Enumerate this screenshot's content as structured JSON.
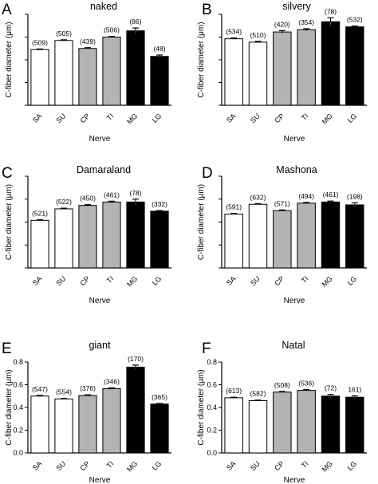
{
  "figure": {
    "colors": {
      "white": "#ffffff",
      "grey": "#b3b3b3",
      "black": "#000000"
    }
  },
  "chart_data": [
    {
      "panel": "A",
      "title": "naked",
      "type": "bar",
      "xlabel": "Nerve",
      "ylabel": "C-fiber diameter (μm)",
      "ylim": [
        0,
        0.8
      ],
      "yticks": [
        "0.0",
        "0.2",
        "0.4",
        "0.6",
        "0.8"
      ],
      "show_yticks": false,
      "categories": [
        "SA",
        "SU",
        "CP",
        "TI",
        "MG",
        "LG"
      ],
      "fills": [
        "white",
        "white",
        "grey",
        "grey",
        "black",
        "black"
      ],
      "values": [
        0.49,
        0.57,
        0.5,
        0.6,
        0.655,
        0.43
      ],
      "errors": [
        0.005,
        0.006,
        0.007,
        0.006,
        0.025,
        0.012
      ],
      "counts": [
        "(509)",
        "(505)",
        "(439)",
        "(506)",
        "(86)",
        "(48)"
      ]
    },
    {
      "panel": "B",
      "title": "silvery",
      "type": "bar",
      "xlabel": "Nerve",
      "ylabel": "C-fiber diameter (μm)",
      "ylim": [
        0,
        0.8
      ],
      "yticks": [
        "0.0",
        "0.2",
        "0.4",
        "0.6",
        "0.8"
      ],
      "show_yticks": false,
      "categories": [
        "SA",
        "SU",
        "CP",
        "TI",
        "MG",
        "LG"
      ],
      "fills": [
        "white",
        "white",
        "grey",
        "grey",
        "black",
        "black"
      ],
      "values": [
        0.585,
        0.555,
        0.645,
        0.665,
        0.735,
        0.69
      ],
      "errors": [
        0.007,
        0.007,
        0.012,
        0.009,
        0.035,
        0.007
      ],
      "counts": [
        "(534)",
        "(510)",
        "(420)",
        "(354)",
        "(78)",
        "(532)"
      ]
    },
    {
      "panel": "C",
      "title": "Damaraland",
      "type": "bar",
      "xlabel": "Nerve",
      "ylabel": "C-fiber diameter (μm)",
      "ylim": [
        0,
        0.8
      ],
      "yticks": [
        "0.0",
        "0.2",
        "0.4",
        "0.6",
        "0.8"
      ],
      "show_yticks": false,
      "categories": [
        "SA",
        "SU",
        "CP",
        "TI",
        "MG",
        "LG"
      ],
      "fills": [
        "white",
        "white",
        "grey",
        "grey",
        "black",
        "black"
      ],
      "values": [
        0.415,
        0.515,
        0.545,
        0.575,
        0.575,
        0.495
      ],
      "errors": [
        0.005,
        0.006,
        0.007,
        0.007,
        0.025,
        0.005
      ],
      "counts": [
        "(521)",
        "(522)",
        "(450)",
        "(461)",
        "(78)",
        "(332)"
      ]
    },
    {
      "panel": "D",
      "title": "Mashona",
      "type": "bar",
      "xlabel": "Nerve",
      "ylabel": "C-fiber diameter (μm)",
      "ylim": [
        0,
        0.8
      ],
      "yticks": [
        "0.0",
        "0.2",
        "0.4",
        "0.6",
        "0.8"
      ],
      "show_yticks": false,
      "categories": [
        "SA",
        "SU",
        "CP",
        "TI",
        "MG",
        "LG"
      ],
      "fills": [
        "white",
        "white",
        "grey",
        "grey",
        "black",
        "black"
      ],
      "values": [
        0.47,
        0.555,
        0.5,
        0.565,
        0.575,
        0.55
      ],
      "errors": [
        0.005,
        0.006,
        0.006,
        0.006,
        0.008,
        0.018
      ],
      "counts": [
        "(591)",
        "(632)",
        "(571)",
        "(494)",
        "(461)",
        "(198)"
      ]
    },
    {
      "panel": "E",
      "title": "giant",
      "type": "bar",
      "xlabel": "Nerve",
      "ylabel": "C-fiber diameter (μm)",
      "ylim": [
        0,
        0.8
      ],
      "yticks": [
        "0.0",
        "0.2",
        "0.4",
        "0.6",
        "0.8"
      ],
      "show_yticks": true,
      "categories": [
        "SA",
        "SU",
        "CP",
        "TI",
        "MG",
        "LG"
      ],
      "fills": [
        "white",
        "white",
        "grey",
        "grey",
        "black",
        "black"
      ],
      "values": [
        0.5,
        0.475,
        0.505,
        0.565,
        0.755,
        0.43
      ],
      "errors": [
        0.006,
        0.005,
        0.006,
        0.007,
        0.018,
        0.005
      ],
      "counts": [
        "(547)",
        "(554)",
        "(376)",
        "(346)",
        "(170)",
        "(365)"
      ]
    },
    {
      "panel": "F",
      "title": "Natal",
      "type": "bar",
      "xlabel": "Nerve",
      "ylabel": "C-fiber diameter (μm)",
      "ylim": [
        0,
        0.8
      ],
      "yticks": [
        "0.0",
        "0.2",
        "0.4",
        "0.6",
        "0.8"
      ],
      "show_yticks": true,
      "categories": [
        "SA",
        "SU",
        "CP",
        "TI",
        "MG",
        "LG"
      ],
      "fills": [
        "white",
        "white",
        "grey",
        "grey",
        "black",
        "black"
      ],
      "values": [
        0.485,
        0.46,
        0.535,
        0.55,
        0.5,
        0.49
      ],
      "errors": [
        0.005,
        0.005,
        0.006,
        0.007,
        0.015,
        0.012
      ],
      "counts": [
        "(613)",
        "(582)",
        "(508)",
        "(536)",
        "(72)",
        "161)"
      ]
    }
  ]
}
